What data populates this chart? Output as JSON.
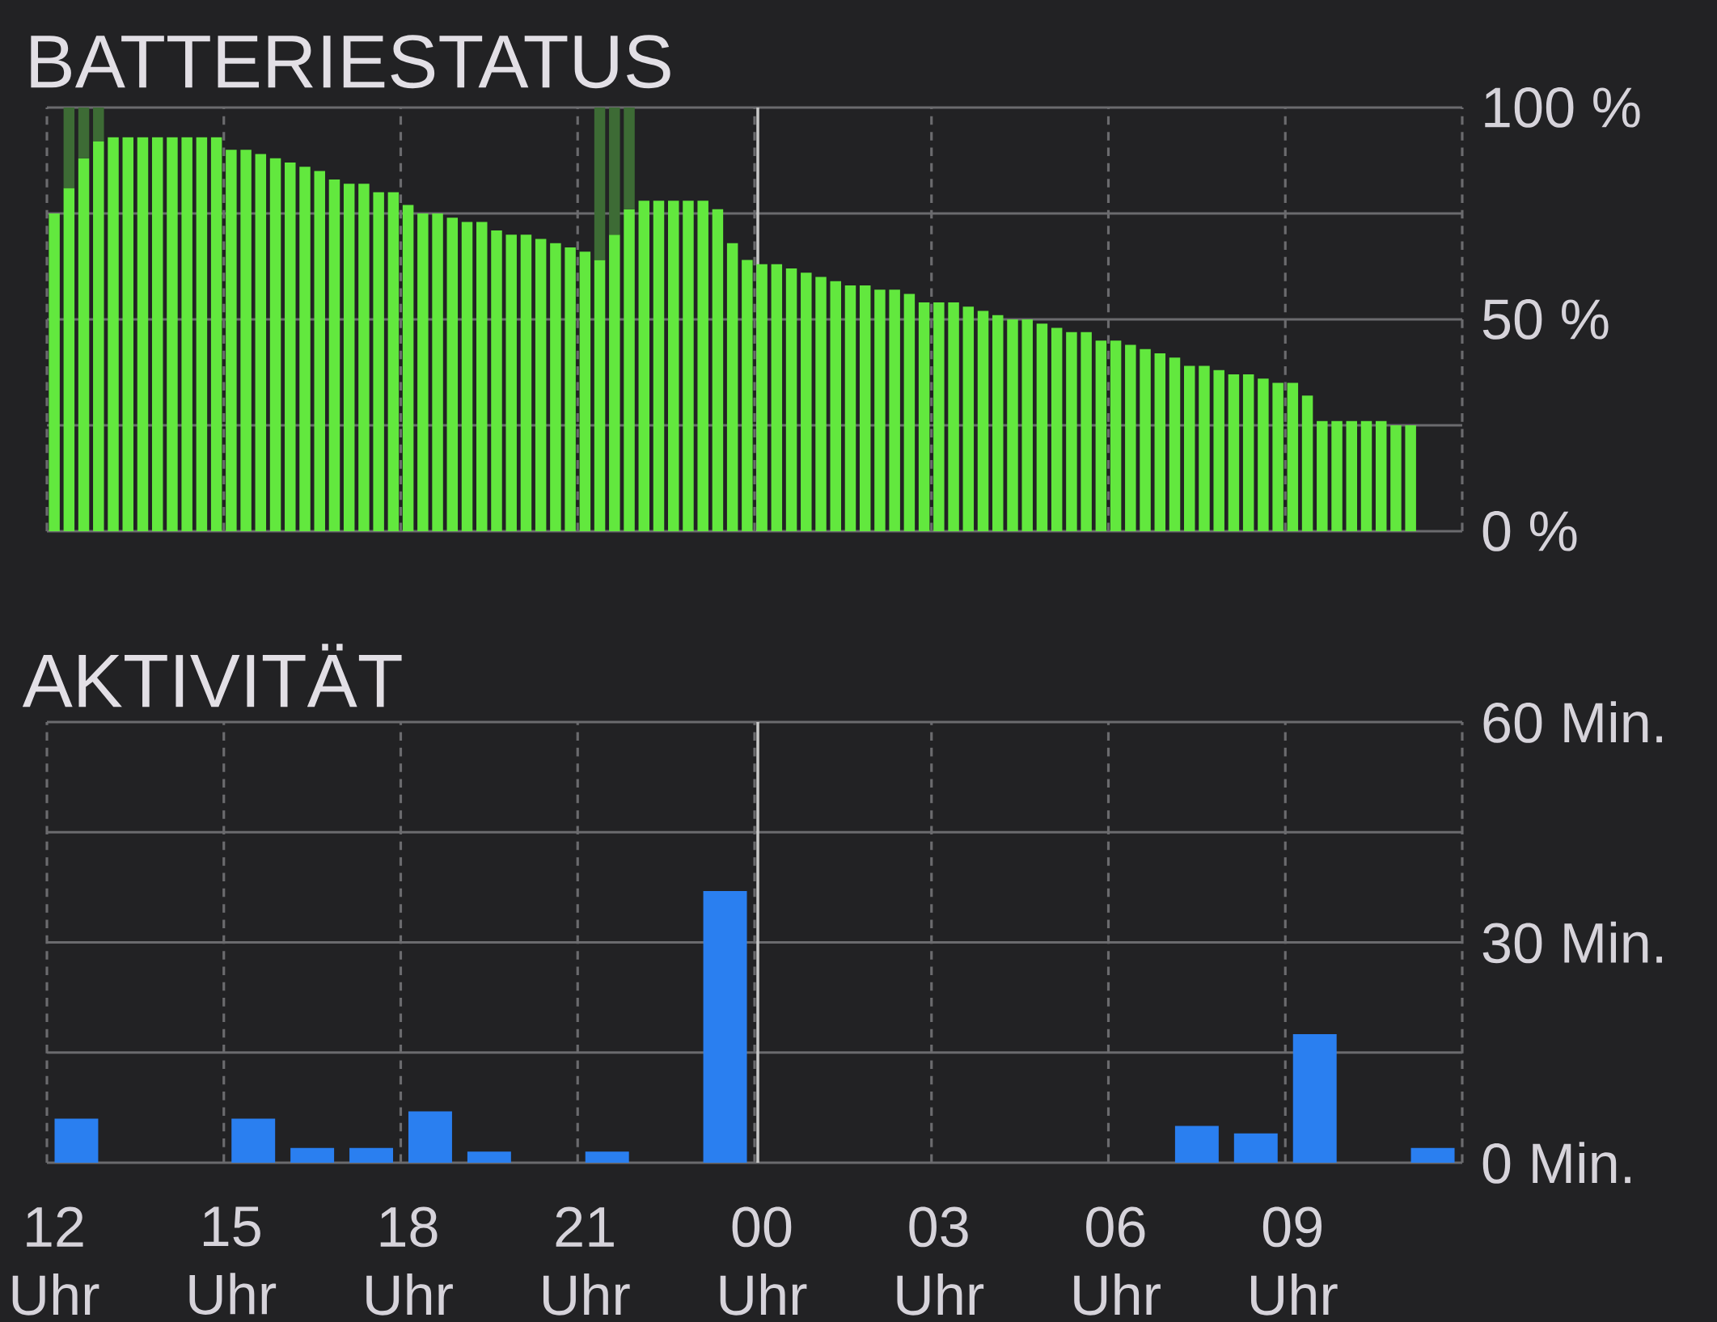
{
  "chart_data": [
    {
      "type": "bar",
      "title": "BATTERIESTATUS",
      "categories": [
        "12 Uhr",
        null,
        null,
        null,
        null,
        null,
        null,
        null,
        null,
        null,
        null,
        null,
        "15 Uhr",
        null,
        null,
        null,
        null,
        null,
        null,
        null,
        null,
        null,
        null,
        null,
        "18 Uhr",
        null,
        null,
        null,
        null,
        null,
        null,
        null,
        null,
        null,
        null,
        null,
        "21 Uhr",
        null,
        null,
        null,
        null,
        null,
        null,
        null,
        null,
        null,
        null,
        null,
        "00 Uhr",
        null,
        null,
        null,
        null,
        null,
        null,
        null,
        null,
        null,
        null,
        null,
        "03 Uhr",
        null,
        null,
        null,
        null,
        null,
        null,
        null,
        null,
        null,
        null,
        null,
        "06 Uhr",
        null,
        null,
        null,
        null,
        null,
        null,
        null,
        null,
        null,
        null,
        null,
        "09 Uhr",
        null,
        null,
        null,
        null,
        null,
        null,
        null,
        null,
        null,
        null,
        null
      ],
      "series": [
        {
          "color": "#62e83e",
          "values": [
            75,
            81,
            88,
            92,
            93,
            93,
            93,
            93,
            93,
            93,
            93,
            93,
            90,
            90,
            89,
            88,
            87,
            86,
            85,
            83,
            82,
            82,
            80,
            80,
            77,
            75,
            75,
            74,
            73,
            73,
            71,
            70,
            70,
            69,
            68,
            67,
            66,
            64,
            70,
            76,
            78,
            78,
            78,
            78,
            78,
            76,
            68,
            64,
            63,
            63,
            62,
            61,
            60,
            59,
            58,
            58,
            57,
            57,
            56,
            54,
            54,
            54,
            53,
            52,
            51,
            50,
            50,
            49,
            48,
            47,
            47,
            45,
            45,
            44,
            43,
            42,
            41,
            39,
            39,
            38,
            37,
            37,
            36,
            35,
            35,
            32,
            26,
            26,
            26,
            26,
            26,
            25,
            25,
            null,
            null,
            null
          ]
        },
        {
          "color": "#3d6b35",
          "values": [
            null,
            19,
            12,
            8,
            null,
            null,
            null,
            null,
            null,
            null,
            null,
            null,
            null,
            null,
            null,
            null,
            null,
            null,
            null,
            null,
            null,
            null,
            null,
            null,
            null,
            null,
            null,
            null,
            null,
            null,
            null,
            null,
            null,
            null,
            null,
            null,
            null,
            36,
            30,
            24,
            null,
            null,
            null,
            null,
            null,
            null,
            null,
            null,
            null,
            null,
            null,
            null,
            null,
            null,
            null,
            null,
            null,
            null,
            null,
            null,
            null,
            null,
            null,
            null,
            null,
            null,
            null,
            null,
            null,
            null,
            null,
            null,
            null,
            null,
            null,
            null,
            null,
            null,
            null,
            null,
            null,
            null,
            null,
            null,
            null,
            null,
            null,
            null,
            null,
            null,
            null,
            null,
            null,
            null,
            null,
            null
          ]
        }
      ],
      "stacked": true,
      "ylim": [
        0,
        100
      ],
      "yticks": [
        {
          "value": 0,
          "label": "0 %"
        },
        {
          "value": 25,
          "label": null
        },
        {
          "value": 50,
          "label": "50 %"
        },
        {
          "value": 75,
          "label": null
        },
        {
          "value": 100,
          "label": "100 %"
        }
      ],
      "grid": true,
      "tick_labels": "y",
      "ref_lines": [
        {
          "axis": "x",
          "value": "00 Uhr",
          "color": "#c8c8c8",
          "line_style": "solid"
        }
      ]
    },
    {
      "type": "bar",
      "title": "AKTIVITÄT",
      "categories": [
        "12 Uhr",
        null,
        null,
        "15 Uhr",
        null,
        null,
        "18 Uhr",
        null,
        null,
        "21 Uhr",
        null,
        null,
        "00 Uhr",
        null,
        null,
        "03 Uhr",
        null,
        null,
        "06 Uhr",
        null,
        null,
        "09 Uhr",
        null,
        null
      ],
      "values": [
        6,
        null,
        null,
        6,
        2,
        2,
        7,
        1.5,
        null,
        1.5,
        null,
        37,
        null,
        null,
        null,
        null,
        null,
        null,
        null,
        5,
        4,
        17.5,
        null,
        2
      ],
      "color": "#2a7ff0",
      "ylim": [
        0,
        60
      ],
      "yticks": [
        {
          "value": 0,
          "label": "0 Min."
        },
        {
          "value": 15,
          "label": null
        },
        {
          "value": 30,
          "label": "30 Min."
        },
        {
          "value": 45,
          "label": null
        },
        {
          "value": 60,
          "label": "60 Min."
        }
      ],
      "grid": true,
      "ref_lines": [
        {
          "axis": "x",
          "value": "00 Uhr",
          "color": "#c8c8c8",
          "line_style": "solid"
        }
      ]
    }
  ]
}
